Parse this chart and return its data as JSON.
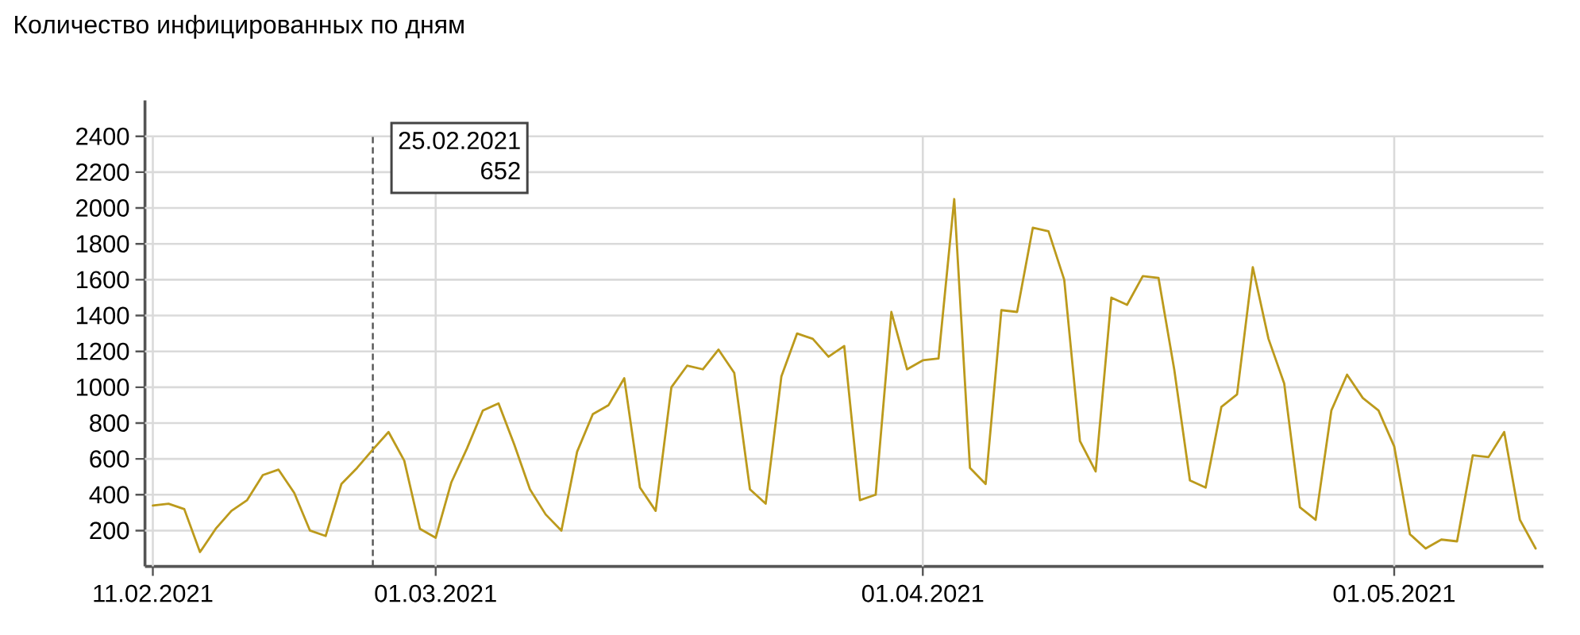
{
  "chart_data": {
    "type": "line",
    "title": "Количество инфицированных по дням",
    "x": [
      "2021-02-11",
      "2021-02-12",
      "2021-02-13",
      "2021-02-14",
      "2021-02-15",
      "2021-02-16",
      "2021-02-17",
      "2021-02-18",
      "2021-02-19",
      "2021-02-20",
      "2021-02-21",
      "2021-02-22",
      "2021-02-23",
      "2021-02-24",
      "2021-02-25",
      "2021-02-26",
      "2021-02-27",
      "2021-02-28",
      "2021-03-01",
      "2021-03-02",
      "2021-03-03",
      "2021-03-04",
      "2021-03-05",
      "2021-03-06",
      "2021-03-07",
      "2021-03-08",
      "2021-03-09",
      "2021-03-10",
      "2021-03-11",
      "2021-03-12",
      "2021-03-13",
      "2021-03-14",
      "2021-03-15",
      "2021-03-16",
      "2021-03-17",
      "2021-03-18",
      "2021-03-19",
      "2021-03-20",
      "2021-03-21",
      "2021-03-22",
      "2021-03-23",
      "2021-03-24",
      "2021-03-25",
      "2021-03-26",
      "2021-03-27",
      "2021-03-28",
      "2021-03-29",
      "2021-03-30",
      "2021-03-31",
      "2021-04-01",
      "2021-04-02",
      "2021-04-03",
      "2021-04-04",
      "2021-04-05",
      "2021-04-06",
      "2021-04-07",
      "2021-04-08",
      "2021-04-09",
      "2021-04-10",
      "2021-04-11",
      "2021-04-12",
      "2021-04-13",
      "2021-04-14",
      "2021-04-15",
      "2021-04-16",
      "2021-04-17",
      "2021-04-18",
      "2021-04-19",
      "2021-04-20",
      "2021-04-21",
      "2021-04-22",
      "2021-04-23",
      "2021-04-24",
      "2021-04-25",
      "2021-04-26",
      "2021-04-27",
      "2021-04-28",
      "2021-04-29",
      "2021-04-30",
      "2021-05-01",
      "2021-05-02",
      "2021-05-03",
      "2021-05-04",
      "2021-05-05",
      "2021-05-06",
      "2021-05-07",
      "2021-05-08",
      "2021-05-09",
      "2021-05-10"
    ],
    "series": [
      {
        "color": "#bc9a1c",
        "values": [
          340,
          350,
          320,
          80,
          210,
          310,
          370,
          510,
          540,
          410,
          200,
          170,
          460,
          550,
          652,
          750,
          590,
          210,
          160,
          470,
          660,
          870,
          910,
          680,
          430,
          290,
          200,
          640,
          850,
          900,
          1050,
          440,
          310,
          1000,
          1120,
          1100,
          1210,
          1080,
          430,
          350,
          1060,
          1300,
          1270,
          1170,
          1230,
          370,
          400,
          1420,
          1100,
          1150,
          1160,
          2050,
          550,
          460,
          1430,
          1420,
          1890,
          1870,
          1600,
          700,
          530,
          1500,
          1460,
          1620,
          1610,
          1100,
          480,
          440,
          890,
          960,
          1670,
          1270,
          1020,
          330,
          260,
          870,
          1070,
          940,
          870,
          670,
          180,
          100,
          150,
          140,
          620,
          610,
          750,
          260,
          100
        ]
      }
    ],
    "xlim": [
      "2021-02-10T12:00",
      "2021-05-10T12:00"
    ],
    "xticks": [
      {
        "value": "2021-02-11",
        "label": "11.02.2021"
      },
      {
        "value": "2021-03-01",
        "label": "01.03.2021"
      },
      {
        "value": "2021-04-01",
        "label": "01.04.2021"
      },
      {
        "value": "2021-05-01",
        "label": "01.05.2021"
      }
    ],
    "ylim": [
      0,
      2600
    ],
    "yticks": [
      200,
      400,
      600,
      800,
      1000,
      1200,
      1400,
      1600,
      1800,
      2000,
      2200,
      2400
    ],
    "grid": true,
    "line_style": "solid",
    "marker": "none",
    "ref_lines": [
      {
        "axis": "x",
        "value": "2021-02-25",
        "color": "#555555",
        "line_style": "dashed"
      }
    ],
    "annotations": [
      "25.02.2021",
      "652"
    ]
  }
}
